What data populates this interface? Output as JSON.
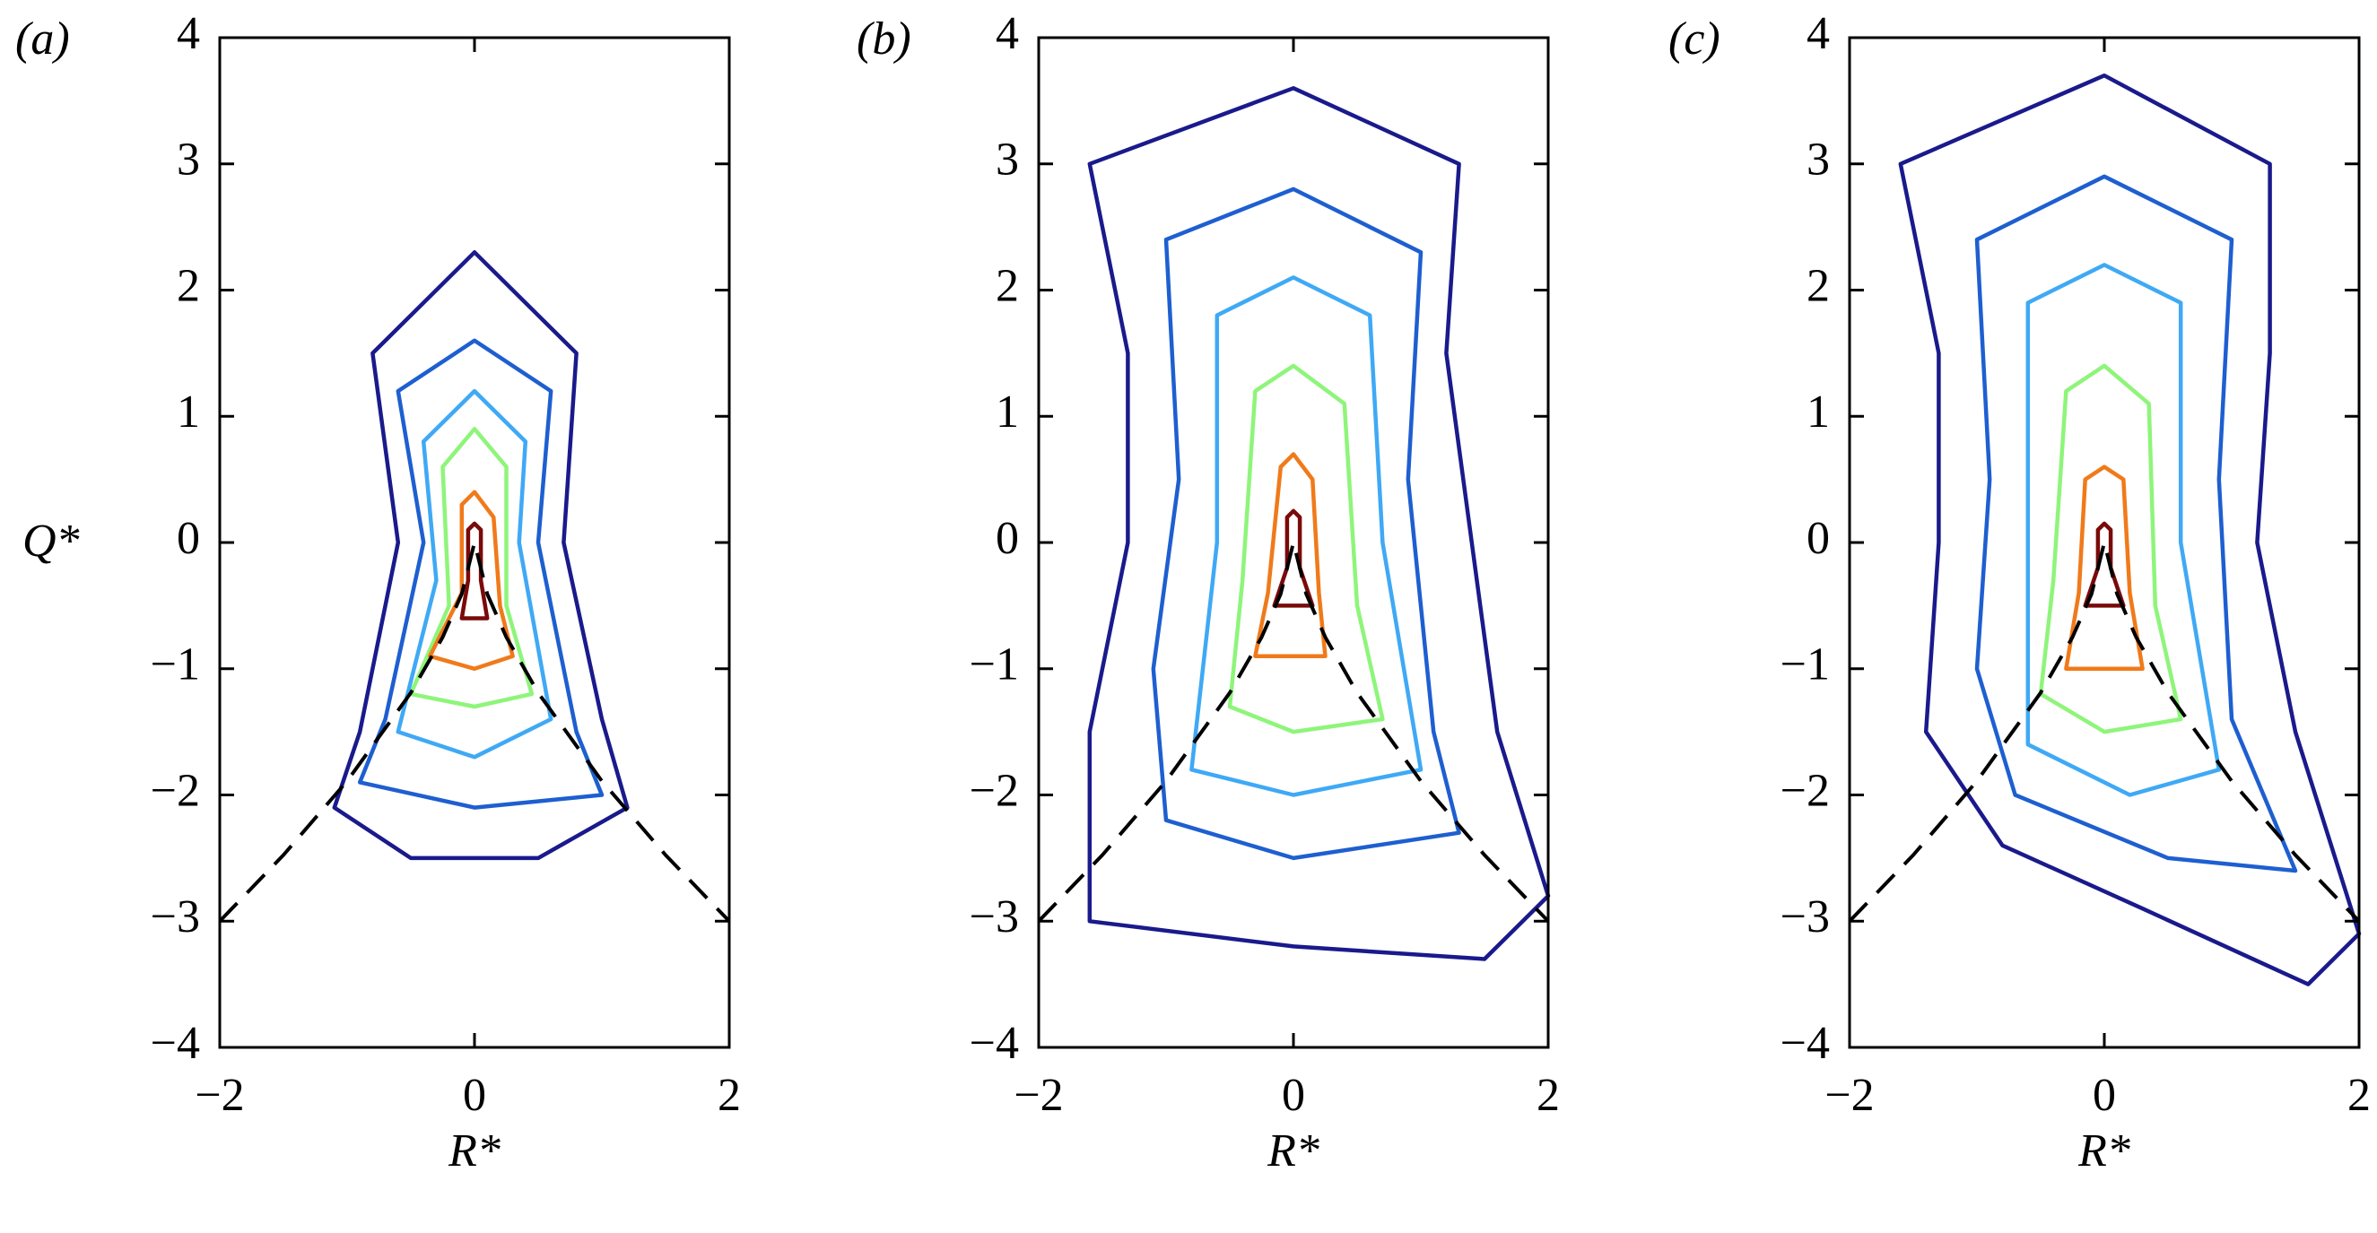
{
  "chart_data": [
    {
      "type": "contour",
      "panel_label": "(a)",
      "xlabel": "R*",
      "ylabel": "Q*",
      "xlim": [
        -2,
        2
      ],
      "ylim": [
        -4,
        4
      ],
      "xticks": [
        {
          "value": -2,
          "label": "−2"
        },
        0,
        2
      ],
      "yticks": [
        {
          "value": -4,
          "label": "−4"
        },
        {
          "value": -3,
          "label": "−3"
        },
        {
          "value": -2,
          "label": "−2"
        },
        {
          "value": -1,
          "label": "−1"
        },
        0,
        1,
        2,
        3,
        4
      ],
      "series": [
        {
          "color": "#1a1a8c",
          "x": [
            -0.8,
            0,
            0.8,
            0.7,
            1.0,
            1.2,
            0.5,
            -0.5,
            -1.1,
            -0.9,
            -0.6
          ],
          "y": [
            1.5,
            2.3,
            1.5,
            0,
            -1.4,
            -2.1,
            -2.5,
            -2.5,
            -2.1,
            -1.5,
            0
          ]
        },
        {
          "color": "#1e5fd0",
          "x": [
            -0.6,
            0,
            0.6,
            0.5,
            0.8,
            1.0,
            0,
            -0.9,
            -0.7,
            -0.4
          ],
          "y": [
            1.2,
            1.6,
            1.2,
            0,
            -1.5,
            -2.0,
            -2.1,
            -1.9,
            -1.4,
            0
          ]
        },
        {
          "color": "#3fa9f5",
          "x": [
            -0.4,
            0,
            0.4,
            0.35,
            0.6,
            0,
            -0.6,
            -0.3
          ],
          "y": [
            0.8,
            1.2,
            0.8,
            0,
            -1.4,
            -1.7,
            -1.5,
            -0.3
          ]
        },
        {
          "color": "#8ef57a",
          "x": [
            -0.25,
            0,
            0.25,
            0.25,
            0.45,
            0,
            -0.5,
            -0.2
          ],
          "y": [
            0.6,
            0.9,
            0.6,
            -0.5,
            -1.2,
            -1.3,
            -1.2,
            -0.5
          ]
        },
        {
          "color": "#f07a1a",
          "x": [
            -0.1,
            0,
            0.15,
            0.2,
            0.3,
            0,
            -0.35,
            -0.1
          ],
          "y": [
            0.3,
            0.4,
            0.2,
            -0.5,
            -0.9,
            -1.0,
            -0.9,
            -0.4
          ]
        },
        {
          "color": "#7a0a0a",
          "x": [
            -0.05,
            0,
            0.05,
            0.05,
            0.1,
            -0.1,
            -0.05
          ],
          "y": [
            0.1,
            0.15,
            0.1,
            -0.3,
            -0.6,
            -0.6,
            -0.3
          ]
        },
        {
          "color": "#000000",
          "dashed": true,
          "x": [
            -2,
            -1.5,
            -1,
            -0.5,
            -0.25,
            -0.1,
            0,
            0.1,
            0.25,
            0.5,
            1,
            1.5,
            2
          ],
          "y": [
            -3,
            -2.476,
            -1.89,
            -1.191,
            -0.75,
            -0.407,
            0,
            -0.407,
            -0.75,
            -1.191,
            -1.89,
            -2.476,
            -3
          ]
        }
      ]
    },
    {
      "type": "contour",
      "panel_label": "(b)",
      "xlabel": "R*",
      "xlim": [
        -2,
        2
      ],
      "ylim": [
        -4,
        4
      ],
      "xticks": [
        {
          "value": -2,
          "label": "−2"
        },
        0,
        2
      ],
      "yticks": [
        {
          "value": -4,
          "label": "−4"
        },
        {
          "value": -3,
          "label": "−3"
        },
        {
          "value": -2,
          "label": "−2"
        },
        {
          "value": -1,
          "label": "−1"
        },
        0,
        1,
        2,
        3,
        4
      ],
      "series": [
        {
          "color": "#1a1a8c",
          "x": [
            -1.6,
            0,
            1.3,
            1.2,
            1.4,
            1.6,
            2.0,
            1.5,
            0,
            -1.6,
            -1.6,
            -1.3,
            -1.3
          ],
          "y": [
            3.0,
            3.6,
            3.0,
            1.5,
            0,
            -1.5,
            -2.8,
            -3.3,
            -3.2,
            -3.0,
            -1.5,
            0,
            1.5
          ]
        },
        {
          "color": "#1e5fd0",
          "x": [
            -1.0,
            0,
            1.0,
            0.9,
            1.1,
            1.3,
            0,
            -1.0,
            -1.1,
            -0.9
          ],
          "y": [
            2.4,
            2.8,
            2.3,
            0.5,
            -1.5,
            -2.3,
            -2.5,
            -2.2,
            -1.0,
            0.5
          ]
        },
        {
          "color": "#3fa9f5",
          "x": [
            -0.6,
            0,
            0.6,
            0.7,
            1.0,
            0,
            -0.8,
            -0.6
          ],
          "y": [
            1.8,
            2.1,
            1.8,
            0,
            -1.8,
            -2.0,
            -1.8,
            0
          ]
        },
        {
          "color": "#8ef57a",
          "x": [
            -0.3,
            0,
            0.4,
            0.5,
            0.7,
            0,
            -0.5,
            -0.4
          ],
          "y": [
            1.2,
            1.4,
            1.1,
            -0.5,
            -1.4,
            -1.5,
            -1.3,
            -0.3
          ]
        },
        {
          "color": "#f07a1a",
          "x": [
            -0.1,
            0,
            0.15,
            0.2,
            0.25,
            -0.3,
            -0.2
          ],
          "y": [
            0.6,
            0.7,
            0.5,
            -0.4,
            -0.9,
            -0.9,
            -0.4
          ]
        },
        {
          "color": "#7a0a0a",
          "x": [
            -0.05,
            0,
            0.05,
            0.05,
            0.15,
            -0.15,
            -0.05
          ],
          "y": [
            0.2,
            0.25,
            0.2,
            -0.2,
            -0.5,
            -0.5,
            -0.2
          ]
        },
        {
          "color": "#000000",
          "dashed": true,
          "x": [
            -2,
            -1.5,
            -1,
            -0.5,
            -0.25,
            -0.1,
            0,
            0.1,
            0.25,
            0.5,
            1,
            1.5,
            2
          ],
          "y": [
            -3,
            -2.476,
            -1.89,
            -1.191,
            -0.75,
            -0.407,
            0,
            -0.407,
            -0.75,
            -1.191,
            -1.89,
            -2.476,
            -3
          ]
        }
      ]
    },
    {
      "type": "contour",
      "panel_label": "(c)",
      "xlabel": "R*",
      "xlim": [
        -2,
        2
      ],
      "ylim": [
        -4,
        4
      ],
      "xticks": [
        {
          "value": -2,
          "label": "−2"
        },
        0,
        2
      ],
      "yticks": [
        {
          "value": -4,
          "label": "−4"
        },
        {
          "value": -3,
          "label": "−3"
        },
        {
          "value": -2,
          "label": "−2"
        },
        {
          "value": -1,
          "label": "−1"
        },
        0,
        1,
        2,
        3,
        4
      ],
      "series": [
        {
          "color": "#1a1a8c",
          "x": [
            -1.6,
            0,
            1.3,
            1.3,
            1.2,
            1.5,
            2.0,
            1.6,
            0.3,
            -0.8,
            -1.4,
            -1.3,
            -1.3
          ],
          "y": [
            3.0,
            3.7,
            3.0,
            1.5,
            0,
            -1.5,
            -3.1,
            -3.5,
            -2.9,
            -2.4,
            -1.5,
            0,
            1.5
          ]
        },
        {
          "color": "#1e5fd0",
          "x": [
            -1.0,
            0,
            1.0,
            0.9,
            1.0,
            1.5,
            0.5,
            -0.7,
            -1.0,
            -0.9
          ],
          "y": [
            2.4,
            2.9,
            2.4,
            0.5,
            -1.4,
            -2.6,
            -2.5,
            -2.0,
            -1.0,
            0.5
          ]
        },
        {
          "color": "#3fa9f5",
          "x": [
            -0.6,
            0,
            0.6,
            0.6,
            0.9,
            0.2,
            -0.6,
            -0.6
          ],
          "y": [
            1.9,
            2.2,
            1.9,
            0,
            -1.8,
            -2.0,
            -1.6,
            0
          ]
        },
        {
          "color": "#8ef57a",
          "x": [
            -0.3,
            0,
            0.35,
            0.4,
            0.6,
            0,
            -0.5,
            -0.4
          ],
          "y": [
            1.2,
            1.4,
            1.1,
            -0.5,
            -1.4,
            -1.5,
            -1.2,
            -0.3
          ]
        },
        {
          "color": "#f07a1a",
          "x": [
            -0.15,
            0,
            0.15,
            0.2,
            0.3,
            -0.3,
            -0.2
          ],
          "y": [
            0.5,
            0.6,
            0.5,
            -0.4,
            -1.0,
            -1.0,
            -0.4
          ]
        },
        {
          "color": "#7a0a0a",
          "x": [
            -0.05,
            0,
            0.05,
            0.05,
            0.15,
            -0.15,
            -0.05
          ],
          "y": [
            0.1,
            0.15,
            0.1,
            -0.2,
            -0.5,
            -0.5,
            -0.2
          ]
        },
        {
          "color": "#000000",
          "dashed": true,
          "x": [
            -2,
            -1.5,
            -1,
            -0.5,
            -0.25,
            -0.1,
            0,
            0.1,
            0.25,
            0.5,
            1,
            1.5,
            2
          ],
          "y": [
            -3,
            -2.476,
            -1.89,
            -1.191,
            -0.75,
            -0.407,
            0,
            -0.407,
            -0.75,
            -1.191,
            -1.89,
            -2.476,
            -3
          ]
        }
      ]
    }
  ]
}
